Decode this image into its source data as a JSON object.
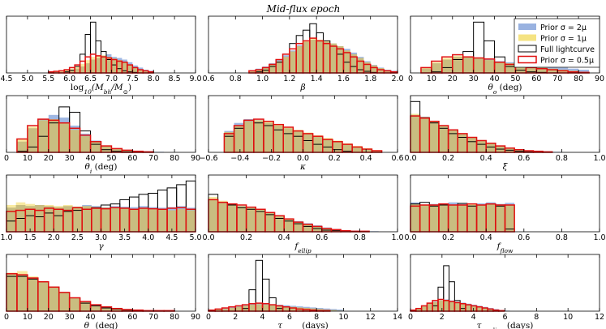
{
  "chart_data": {
    "type": "bar",
    "title": "Mid-flux epoch",
    "colors": {
      "blue": "#7f9fd8",
      "yellow": "#f3dc63",
      "overlap": "#c8ba7c",
      "black": "#000000",
      "red": "#e01010"
    },
    "legend": {
      "placement": "top-right",
      "entries": [
        {
          "label": "Prior σ = 2μ",
          "style": "blue"
        },
        {
          "label": "Prior σ = 1μ",
          "style": "yellow"
        },
        {
          "label": "Full lightcurve",
          "style": "black"
        },
        {
          "label": "Prior σ = 0.5μ",
          "style": "red"
        }
      ]
    },
    "panels": [
      {
        "id": "log-mbh",
        "xlabel": "log10(Mbh/M⊙)",
        "xlim": [
          4.5,
          9.0
        ],
        "ticks": [
          "4.5",
          "5.0",
          "5.5",
          "6.0",
          "6.5",
          "7.0",
          "7.5",
          "8.0",
          "8.5",
          "9.0"
        ],
        "bins": [
          5.5,
          8.0
        ],
        "blue": [
          0.02,
          0.02,
          0.02,
          0.04,
          0.06,
          0.08,
          0.12,
          0.18,
          0.25,
          0.28,
          0.32,
          0.35,
          0.3,
          0.28,
          0.25,
          0.2,
          0.14,
          0.1,
          0.06,
          0.04
        ],
        "yellow": [
          0.03,
          0.03,
          0.04,
          0.06,
          0.08,
          0.12,
          0.17,
          0.24,
          0.3,
          0.32,
          0.33,
          0.3,
          0.27,
          0.24,
          0.2,
          0.15,
          0.1,
          0.06,
          0.04,
          0.02
        ],
        "black": [
          0,
          0,
          0,
          0.02,
          0.05,
          0.12,
          0.35,
          0.72,
          0.95,
          0.6,
          0.4,
          0.25,
          0.15,
          0.08,
          0.04,
          0.02,
          0.01,
          0,
          0,
          0
        ],
        "red": [
          0.02,
          0.03,
          0.04,
          0.06,
          0.1,
          0.15,
          0.22,
          0.3,
          0.35,
          0.32,
          0.3,
          0.28,
          0.25,
          0.22,
          0.2,
          0.15,
          0.1,
          0.06,
          0.04,
          0.02
        ]
      },
      {
        "id": "beta",
        "xlabel": "β",
        "xlim": [
          0.6,
          2.0
        ],
        "ticks": [
          "0.6",
          "0.8",
          "1.0",
          "1.2",
          "1.4",
          "1.6",
          "1.8",
          "2.0"
        ],
        "bins": [
          0.9,
          2.0
        ],
        "blue": [
          0.05,
          0.08,
          0.12,
          0.18,
          0.25,
          0.33,
          0.42,
          0.52,
          0.58,
          0.62,
          0.6,
          0.58,
          0.55,
          0.5,
          0.45,
          0.38,
          0.3,
          0.22,
          0.15,
          0.1,
          0.06,
          0.04
        ],
        "yellow": [
          0.04,
          0.06,
          0.1,
          0.15,
          0.22,
          0.3,
          0.4,
          0.5,
          0.6,
          0.66,
          0.62,
          0.6,
          0.55,
          0.5,
          0.42,
          0.35,
          0.28,
          0.2,
          0.14,
          0.09,
          0.05,
          0.03
        ],
        "black": [
          0,
          0.02,
          0.05,
          0.12,
          0.2,
          0.35,
          0.55,
          0.7,
          0.8,
          0.92,
          0.75,
          0.6,
          0.5,
          0.35,
          0.2,
          0.12,
          0.06,
          0.03,
          0.01,
          0,
          0,
          0
        ],
        "red": [
          0.04,
          0.06,
          0.1,
          0.16,
          0.25,
          0.35,
          0.45,
          0.55,
          0.6,
          0.65,
          0.6,
          0.55,
          0.5,
          0.45,
          0.38,
          0.3,
          0.22,
          0.16,
          0.1,
          0.06,
          0.04,
          0.02
        ]
      },
      {
        "id": "theta-o",
        "xlabel": "θo (deg)",
        "xlim": [
          0,
          90
        ],
        "ticks": [
          "0",
          "10",
          "20",
          "30",
          "40",
          "50",
          "60",
          "70",
          "80",
          "90"
        ],
        "bins": [
          5,
          85
        ],
        "blue": [
          0.08,
          0.18,
          0.25,
          0.3,
          0.3,
          0.27,
          0.25,
          0.22,
          0.2,
          0.2,
          0.18,
          0.15,
          0.12,
          0.1,
          0.08,
          0.06
        ],
        "yellow": [
          0.1,
          0.2,
          0.28,
          0.32,
          0.3,
          0.28,
          0.24,
          0.2,
          0.18,
          0.15,
          0.12,
          0.1,
          0.08,
          0.06,
          0.04,
          0.02
        ],
        "black": [
          0,
          0.02,
          0.1,
          0.25,
          0.4,
          0.95,
          0.6,
          0.3,
          0.12,
          0.05,
          0.02,
          0.01,
          0,
          0,
          0,
          0
        ],
        "red": [
          0.1,
          0.22,
          0.3,
          0.34,
          0.3,
          0.28,
          0.26,
          0.2,
          0.16,
          0.12,
          0.1,
          0.08,
          0.06,
          0.04,
          0.02,
          0.01
        ]
      },
      {
        "id": "theta-i",
        "xlabel": "θi (deg)",
        "xlim": [
          0,
          90
        ],
        "ticks": [
          "0",
          "10",
          "20",
          "30",
          "40",
          "50",
          "60",
          "70",
          "80",
          "90"
        ],
        "bins": [
          5,
          85
        ],
        "blue": [
          0.2,
          0.45,
          0.62,
          0.7,
          0.65,
          0.5,
          0.35,
          0.22,
          0.12,
          0.06,
          0.04,
          0.02,
          0.01,
          0.01,
          0,
          0
        ],
        "yellow": [
          0.25,
          0.48,
          0.6,
          0.62,
          0.55,
          0.42,
          0.3,
          0.2,
          0.12,
          0.07,
          0.04,
          0.02,
          0.01,
          0,
          0,
          0
        ],
        "black": [
          0.02,
          0.1,
          0.3,
          0.55,
          0.85,
          0.75,
          0.4,
          0.15,
          0.05,
          0.02,
          0.01,
          0,
          0,
          0,
          0,
          0
        ],
        "red": [
          0.25,
          0.5,
          0.62,
          0.6,
          0.55,
          0.45,
          0.32,
          0.2,
          0.12,
          0.07,
          0.04,
          0.02,
          0.01,
          0,
          0,
          0
        ]
      },
      {
        "id": "kappa",
        "xlabel": "κ",
        "xlim": [
          -0.6,
          0.6
        ],
        "ticks": [
          "−0.6",
          "−0.4",
          "−0.2",
          "0.0",
          "0.2",
          "0.4",
          "0.6"
        ],
        "bins": [
          -0.5,
          0.5
        ],
        "blue": [
          0.4,
          0.55,
          0.62,
          0.6,
          0.55,
          0.5,
          0.45,
          0.4,
          0.35,
          0.3,
          0.25,
          0.2,
          0.15,
          0.1,
          0.06,
          0.03
        ],
        "yellow": [
          0.38,
          0.5,
          0.58,
          0.6,
          0.57,
          0.52,
          0.47,
          0.42,
          0.37,
          0.32,
          0.27,
          0.22,
          0.17,
          0.12,
          0.08,
          0.04
        ],
        "black": [
          0.3,
          0.45,
          0.6,
          0.55,
          0.5,
          0.42,
          0.35,
          0.3,
          0.22,
          0.15,
          0.1,
          0.05,
          0.02,
          0,
          0,
          0
        ],
        "red": [
          0.35,
          0.5,
          0.6,
          0.62,
          0.58,
          0.52,
          0.47,
          0.4,
          0.35,
          0.3,
          0.24,
          0.2,
          0.15,
          0.1,
          0.06,
          0.03
        ]
      },
      {
        "id": "xi",
        "xlabel": "ξ",
        "xlim": [
          0,
          1
        ],
        "ticks": [
          "0.0",
          "0.2",
          "0.4",
          "0.6",
          "0.8",
          "1.0"
        ],
        "bins": [
          0,
          0.95
        ],
        "blue": [
          0.7,
          0.65,
          0.58,
          0.5,
          0.42,
          0.35,
          0.28,
          0.22,
          0.17,
          0.12,
          0.08,
          0.05,
          0.03,
          0.02,
          0.01,
          0.01,
          0,
          0,
          0
        ],
        "yellow": [
          0.72,
          0.66,
          0.58,
          0.5,
          0.42,
          0.35,
          0.28,
          0.22,
          0.16,
          0.11,
          0.07,
          0.04,
          0.02,
          0.01,
          0.01,
          0,
          0,
          0,
          0
        ],
        "black": [
          0.95,
          0.65,
          0.55,
          0.45,
          0.35,
          0.28,
          0.2,
          0.15,
          0.1,
          0.06,
          0.04,
          0.02,
          0.01,
          0,
          0,
          0,
          0,
          0,
          0
        ],
        "red": [
          0.68,
          0.64,
          0.58,
          0.5,
          0.42,
          0.35,
          0.28,
          0.22,
          0.17,
          0.12,
          0.08,
          0.05,
          0.03,
          0.02,
          0.01,
          0,
          0,
          0,
          0
        ]
      },
      {
        "id": "gamma",
        "xlabel": "γ",
        "xlim": [
          1.0,
          5.0
        ],
        "ticks": [
          "1.0",
          "1.5",
          "2.0",
          "2.5",
          "3.0",
          "3.5",
          "4.0",
          "4.5",
          "5.0"
        ],
        "bins": [
          1.0,
          5.0
        ],
        "blue": [
          0.45,
          0.5,
          0.48,
          0.5,
          0.48,
          0.46,
          0.48,
          0.47,
          0.5,
          0.48,
          0.46,
          0.48,
          0.47,
          0.46,
          0.48,
          0.46,
          0.45,
          0.46,
          0.48,
          0.45
        ],
        "yellow": [
          0.5,
          0.55,
          0.52,
          0.5,
          0.5,
          0.48,
          0.5,
          0.47,
          0.48,
          0.46,
          0.45,
          0.46,
          0.45,
          0.43,
          0.44,
          0.42,
          0.42,
          0.4,
          0.42,
          0.4
        ],
        "black": [
          0.2,
          0.25,
          0.3,
          0.28,
          0.35,
          0.3,
          0.38,
          0.4,
          0.42,
          0.45,
          0.5,
          0.52,
          0.6,
          0.65,
          0.7,
          0.72,
          0.78,
          0.82,
          0.88,
          0.95
        ],
        "red": [
          0.38,
          0.4,
          0.42,
          0.4,
          0.44,
          0.42,
          0.4,
          0.45,
          0.42,
          0.44,
          0.43,
          0.45,
          0.44,
          0.42,
          0.44,
          0.43,
          0.42,
          0.44,
          0.45,
          0.42
        ]
      },
      {
        "id": "f-ellip",
        "xlabel": "fellip",
        "xlim": [
          0,
          1
        ],
        "ticks": [
          "0.0",
          "0.2",
          "0.4",
          "0.6",
          "0.8",
          "1.0"
        ],
        "bins": [
          0,
          0.95
        ],
        "blue": [
          0.6,
          0.55,
          0.52,
          0.48,
          0.45,
          0.4,
          0.35,
          0.3,
          0.25,
          0.2,
          0.16,
          0.12,
          0.08,
          0.05,
          0.03,
          0.02,
          0.01,
          0.01,
          0
        ],
        "yellow": [
          0.65,
          0.58,
          0.52,
          0.48,
          0.45,
          0.42,
          0.36,
          0.3,
          0.24,
          0.18,
          0.14,
          0.1,
          0.07,
          0.04,
          0.02,
          0.01,
          0.01,
          0,
          0
        ],
        "black": [
          0.7,
          0.55,
          0.5,
          0.45,
          0.42,
          0.38,
          0.32,
          0.25,
          0.2,
          0.15,
          0.1,
          0.06,
          0.03,
          0.02,
          0.01,
          0,
          0,
          0,
          0
        ],
        "red": [
          0.6,
          0.55,
          0.52,
          0.5,
          0.46,
          0.42,
          0.36,
          0.3,
          0.24,
          0.18,
          0.14,
          0.1,
          0.06,
          0.04,
          0.02,
          0.01,
          0.01,
          0,
          0
        ]
      },
      {
        "id": "f-flow",
        "xlabel": "fflow",
        "xlim": [
          0,
          1
        ],
        "ticks": [
          "0.0",
          "0.2",
          "0.4",
          "0.6",
          "0.8",
          "1.0"
        ],
        "bins": [
          0,
          0.55
        ],
        "blue": [
          0.55,
          0.5,
          0.52,
          0.5,
          0.55,
          0.52,
          0.5,
          0.53,
          0.55,
          0.52,
          0.54
        ],
        "yellow": [
          0.52,
          0.5,
          0.5,
          0.52,
          0.5,
          0.5,
          0.52,
          0.5,
          0.52,
          0.5,
          0.5
        ],
        "black": [
          0.52,
          0.55,
          0.48,
          0.5,
          0.5,
          0.53,
          0.48,
          0.5,
          0.52,
          0.48,
          0.05
        ],
        "red": [
          0.48,
          0.5,
          0.5,
          0.52,
          0.5,
          0.5,
          0.52,
          0.5,
          0.52,
          0.5,
          0.5
        ]
      },
      {
        "id": "theta-e",
        "xlabel": "θe (deg)",
        "xlim": [
          0,
          90
        ],
        "ticks": [
          "0",
          "10",
          "20",
          "30",
          "40",
          "50",
          "60",
          "70",
          "80",
          "90"
        ],
        "bins": [
          0,
          90
        ],
        "blue": [
          0.7,
          0.68,
          0.62,
          0.55,
          0.45,
          0.35,
          0.25,
          0.18,
          0.12,
          0.08,
          0.05,
          0.03,
          0.02,
          0.01,
          0.01,
          0.01,
          0,
          0
        ],
        "yellow": [
          0.72,
          0.75,
          0.65,
          0.55,
          0.45,
          0.35,
          0.25,
          0.17,
          0.1,
          0.06,
          0.04,
          0.02,
          0.01,
          0.01,
          0,
          0,
          0,
          0
        ],
        "black": [
          0.65,
          0.65,
          0.6,
          0.55,
          0.45,
          0.35,
          0.25,
          0.15,
          0.1,
          0.06,
          0.04,
          0.02,
          0.01,
          0,
          0,
          0,
          0,
          0
        ],
        "red": [
          0.7,
          0.68,
          0.62,
          0.55,
          0.45,
          0.35,
          0.25,
          0.18,
          0.12,
          0.08,
          0.05,
          0.03,
          0.02,
          0.01,
          0.01,
          0.01,
          0,
          0
        ]
      },
      {
        "id": "tau-mean",
        "xlabel": "τmean (days)",
        "xlim": [
          0,
          14
        ],
        "ticks": [
          "0",
          "2",
          "4",
          "6",
          "8",
          "10",
          "12",
          "14"
        ],
        "bins": [
          0,
          10
        ],
        "blue": [
          0.02,
          0.03,
          0.05,
          0.07,
          0.1,
          0.12,
          0.14,
          0.15,
          0.14,
          0.13,
          0.12,
          0.11,
          0.1,
          0.09,
          0.08,
          0.07,
          0.06,
          0.05,
          0.04,
          0.03
        ],
        "yellow": [
          0.02,
          0.03,
          0.04,
          0.06,
          0.08,
          0.1,
          0.12,
          0.13,
          0.12,
          0.11,
          0.1,
          0.09,
          0.08,
          0.07,
          0.06,
          0.05,
          0.04,
          0.03,
          0.02,
          0.01
        ],
        "black": [
          0,
          0,
          0,
          0,
          0,
          0.05,
          0.4,
          0.95,
          0.6,
          0.25,
          0.05,
          0,
          0,
          0,
          0,
          0,
          0,
          0,
          0,
          0
        ],
        "red": [
          0.02,
          0.04,
          0.06,
          0.08,
          0.1,
          0.12,
          0.14,
          0.15,
          0.14,
          0.12,
          0.1,
          0.08,
          0.06,
          0.04,
          0.03,
          0.02,
          0.01,
          0.01,
          0,
          0
        ]
      },
      {
        "id": "tau-median",
        "xlabel": "τmedian (days)",
        "xlim": [
          0,
          12
        ],
        "ticks": [
          "0",
          "2",
          "4",
          "6",
          "8",
          "10",
          "12"
        ],
        "bins": [
          0,
          7
        ],
        "blue": [
          0.02,
          0.05,
          0.1,
          0.15,
          0.18,
          0.2,
          0.22,
          0.2,
          0.18,
          0.16,
          0.14,
          0.12,
          0.1,
          0.08,
          0.06,
          0.04,
          0.02,
          0.01,
          0,
          0
        ],
        "yellow": [
          0.03,
          0.06,
          0.1,
          0.14,
          0.17,
          0.2,
          0.21,
          0.19,
          0.17,
          0.15,
          0.12,
          0.1,
          0.08,
          0.06,
          0.04,
          0.02,
          0.01,
          0,
          0,
          0
        ],
        "black": [
          0,
          0,
          0,
          0,
          0.1,
          0.45,
          0.85,
          0.55,
          0.2,
          0.05,
          0,
          0,
          0,
          0,
          0,
          0,
          0,
          0,
          0,
          0
        ],
        "red": [
          0.02,
          0.05,
          0.1,
          0.15,
          0.2,
          0.22,
          0.2,
          0.18,
          0.16,
          0.14,
          0.12,
          0.1,
          0.08,
          0.06,
          0.04,
          0.02,
          0.01,
          0,
          0,
          0
        ]
      }
    ]
  }
}
